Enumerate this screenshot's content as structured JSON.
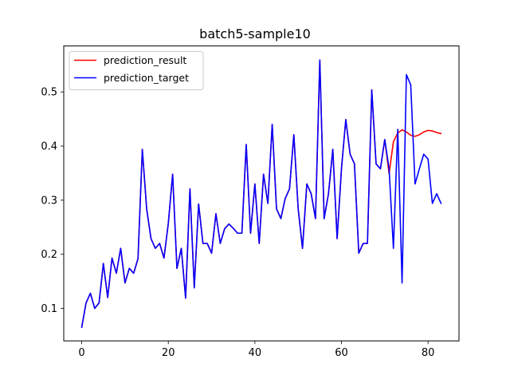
{
  "chart_data": {
    "type": "line",
    "title": "batch5-sample10",
    "xlabel": "",
    "ylabel": "",
    "xlim": [
      -4.15,
      87.15
    ],
    "ylim": [
      0.04,
      0.585
    ],
    "x_ticks": [
      0,
      20,
      40,
      60,
      80
    ],
    "y_ticks": [
      0.1,
      0.2,
      0.3,
      0.4,
      0.5
    ],
    "grid": false,
    "legend_position": "upper left",
    "series": [
      {
        "name": "prediction_result",
        "color": "#ff0000",
        "x": [
          0,
          1,
          2,
          3,
          4,
          5,
          6,
          7,
          8,
          9,
          10,
          11,
          12,
          13,
          14,
          15,
          16,
          17,
          18,
          19,
          20,
          21,
          22,
          23,
          24,
          25,
          26,
          27,
          28,
          29,
          30,
          31,
          32,
          33,
          34,
          35,
          36,
          37,
          38,
          39,
          40,
          41,
          42,
          43,
          44,
          45,
          46,
          47,
          48,
          49,
          50,
          51,
          52,
          53,
          54,
          55,
          56,
          57,
          58,
          59,
          60,
          61,
          62,
          63,
          64,
          65,
          66,
          67,
          68,
          69,
          70,
          71,
          72,
          73,
          74,
          75,
          76,
          77,
          78,
          79,
          80,
          81,
          82,
          83
        ],
        "values": [
          0.065,
          0.11,
          0.128,
          0.1,
          0.11,
          0.183,
          0.12,
          0.193,
          0.165,
          0.211,
          0.147,
          0.174,
          0.165,
          0.192,
          0.394,
          0.284,
          0.229,
          0.211,
          0.22,
          0.193,
          0.257,
          0.348,
          0.174,
          0.211,
          0.119,
          0.321,
          0.138,
          0.293,
          0.22,
          0.22,
          0.202,
          0.275,
          0.22,
          0.247,
          0.256,
          0.248,
          0.239,
          0.239,
          0.403,
          0.239,
          0.33,
          0.22,
          0.348,
          0.294,
          0.44,
          0.284,
          0.266,
          0.303,
          0.321,
          0.421,
          0.284,
          0.211,
          0.33,
          0.312,
          0.266,
          0.559,
          0.266,
          0.312,
          0.394,
          0.229,
          0.358,
          0.449,
          0.385,
          0.367,
          0.202,
          0.22,
          0.22,
          0.504,
          0.367,
          0.358,
          0.412,
          0.349,
          0.408,
          0.424,
          0.43,
          0.426,
          0.42,
          0.418,
          0.421,
          0.426,
          0.429,
          0.428,
          0.425,
          0.423
        ]
      },
      {
        "name": "prediction_target",
        "color": "#0000ff",
        "x": [
          0,
          1,
          2,
          3,
          4,
          5,
          6,
          7,
          8,
          9,
          10,
          11,
          12,
          13,
          14,
          15,
          16,
          17,
          18,
          19,
          20,
          21,
          22,
          23,
          24,
          25,
          26,
          27,
          28,
          29,
          30,
          31,
          32,
          33,
          34,
          35,
          36,
          37,
          38,
          39,
          40,
          41,
          42,
          43,
          44,
          45,
          46,
          47,
          48,
          49,
          50,
          51,
          52,
          53,
          54,
          55,
          56,
          57,
          58,
          59,
          60,
          61,
          62,
          63,
          64,
          65,
          66,
          67,
          68,
          69,
          70,
          71,
          72,
          73,
          74,
          75,
          76,
          77,
          78,
          79,
          80,
          81,
          82,
          83
        ],
        "values": [
          0.065,
          0.11,
          0.128,
          0.1,
          0.11,
          0.183,
          0.12,
          0.193,
          0.165,
          0.211,
          0.147,
          0.174,
          0.165,
          0.192,
          0.394,
          0.284,
          0.229,
          0.211,
          0.22,
          0.193,
          0.257,
          0.348,
          0.174,
          0.211,
          0.119,
          0.321,
          0.138,
          0.293,
          0.22,
          0.22,
          0.202,
          0.275,
          0.22,
          0.247,
          0.256,
          0.248,
          0.239,
          0.239,
          0.403,
          0.239,
          0.33,
          0.22,
          0.348,
          0.294,
          0.44,
          0.284,
          0.266,
          0.303,
          0.321,
          0.421,
          0.284,
          0.211,
          0.33,
          0.312,
          0.266,
          0.559,
          0.266,
          0.312,
          0.394,
          0.229,
          0.358,
          0.449,
          0.385,
          0.367,
          0.202,
          0.22,
          0.22,
          0.504,
          0.367,
          0.358,
          0.412,
          0.358,
          0.211,
          0.431,
          0.147,
          0.532,
          0.513,
          0.33,
          0.358,
          0.385,
          0.376,
          0.294,
          0.312,
          0.294
        ]
      }
    ]
  }
}
